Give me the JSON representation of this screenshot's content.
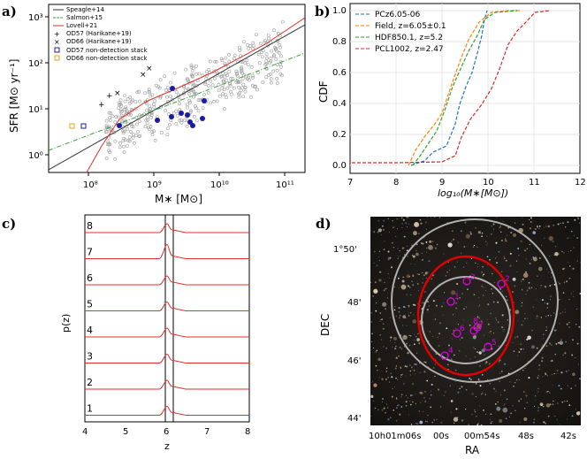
{
  "panels": {
    "a": {
      "letter": "a)",
      "ylabel": "SFR [M⊙ yr⁻¹]",
      "xlabel": "M∗ [M⊙]",
      "xticks": [
        "10⁸",
        "10⁹",
        "10¹⁰",
        "10¹¹"
      ],
      "yticks": [
        "10³",
        "10²",
        "10¹",
        "10⁰"
      ],
      "legend": [
        "Speagle+14",
        "Salmon+15",
        "Lovell+21",
        "OD57 (Harikane+19)",
        "OD66 (Harikane+19)",
        "OD57 non-detection stack",
        "OD66 non-detection stack"
      ],
      "colors": {
        "speagle": "#333333",
        "salmon": "#3aa03a",
        "lovell": "#e0302a",
        "od57": "#1a1aa8",
        "od66": "#f39c12",
        "field": "#aaaaaa"
      }
    },
    "b": {
      "letter": "b)",
      "ylabel": "CDF",
      "xlabel": "log₁₀(M∗[M⊙])",
      "xticks": [
        "7",
        "8",
        "9",
        "10",
        "11",
        "12"
      ],
      "yticks": [
        "1.0",
        "0.8",
        "0.6",
        "0.4",
        "0.2",
        "0.0"
      ],
      "legend": [
        "PCz6.05-06",
        "Field, z=6.05±0.1",
        "HDF850.1, z=5.2",
        "PCL1002, z=2.47"
      ],
      "colors": [
        "#1f77b4",
        "#ff7f0e",
        "#2ca02c",
        "#d62728"
      ]
    },
    "c": {
      "letter": "c)",
      "ylabel": "p(z)",
      "xlabel": "z",
      "xticks": [
        "4",
        "5",
        "6",
        "7",
        "8"
      ],
      "row_labels": [
        "8",
        "7",
        "6",
        "5",
        "4",
        "3",
        "2",
        "1"
      ]
    },
    "d": {
      "letter": "d)",
      "ylabel": "DEC",
      "xlabel": "RA",
      "yticks": [
        "1°50'",
        "48'",
        "46'",
        "44'"
      ],
      "xticks": [
        "10h01m06s",
        "00s",
        "00m54s",
        "48s",
        "42s"
      ],
      "member_labels": [
        "1",
        "2",
        "3",
        "4",
        "5",
        "6",
        "7",
        "8"
      ]
    }
  }
}
